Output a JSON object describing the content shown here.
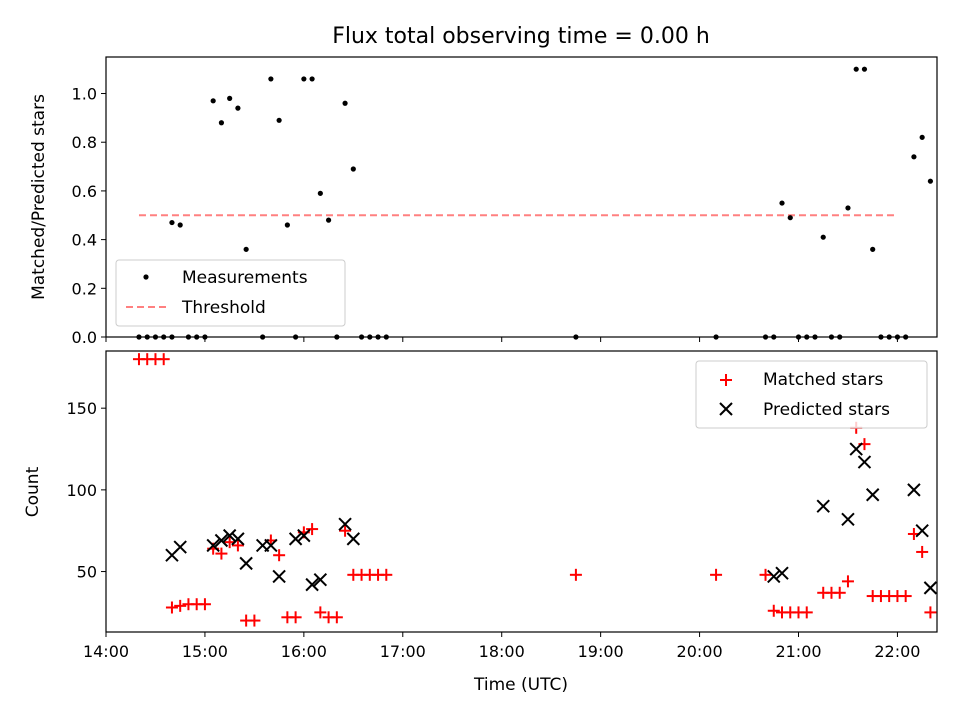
{
  "figure": {
    "title": "Flux total observing time = 0.00 h"
  },
  "chart_data": [
    {
      "type": "scatter",
      "ylabel": "Matched/Predicted stars",
      "xlabel": "",
      "xlim": [
        "14:00",
        "22:24"
      ],
      "ylim": [
        0,
        1.15
      ],
      "yticks": [
        0.0,
        0.2,
        0.4,
        0.6,
        0.8,
        1.0
      ],
      "ytick_labels": [
        "0.0",
        "0.2",
        "0.4",
        "0.6",
        "0.8",
        "1.0"
      ],
      "legend": {
        "placement": "lower-left",
        "entries": [
          "Measurements",
          "Threshold"
        ]
      },
      "threshold": {
        "name": "Threshold",
        "value": 0.5,
        "x": [
          "14:20",
          "22:00"
        ],
        "color": "#ff8080"
      },
      "series": [
        {
          "name": "Measurements",
          "color": "#000000",
          "points": [
            [
              "14:20",
              0
            ],
            [
              "14:25",
              0
            ],
            [
              "14:30",
              0
            ],
            [
              "14:35",
              0
            ],
            [
              "14:40",
              0
            ],
            [
              "14:50",
              0
            ],
            [
              "14:55",
              0
            ],
            [
              "15:00",
              0
            ],
            [
              "14:40",
              0.47
            ],
            [
              "14:45",
              0.46
            ],
            [
              "15:05",
              0.97
            ],
            [
              "15:10",
              0.88
            ],
            [
              "15:15",
              0.98
            ],
            [
              "15:20",
              0.94
            ],
            [
              "15:25",
              0.36
            ],
            [
              "15:35",
              0
            ],
            [
              "15:40",
              1.06
            ],
            [
              "15:45",
              0.89
            ],
            [
              "15:50",
              0.46
            ],
            [
              "15:55",
              0
            ],
            [
              "16:00",
              1.06
            ],
            [
              "16:05",
              1.06
            ],
            [
              "16:10",
              0.59
            ],
            [
              "16:15",
              0.48
            ],
            [
              "16:20",
              0
            ],
            [
              "16:25",
              0.96
            ],
            [
              "16:30",
              0.69
            ],
            [
              "16:35",
              0
            ],
            [
              "16:40",
              0
            ],
            [
              "16:45",
              0
            ],
            [
              "16:50",
              0
            ],
            [
              "18:45",
              0
            ],
            [
              "20:10",
              0
            ],
            [
              "20:40",
              0
            ],
            [
              "20:45",
              0
            ],
            [
              "20:50",
              0.55
            ],
            [
              "20:55",
              0.49
            ],
            [
              "21:00",
              0
            ],
            [
              "21:05",
              0
            ],
            [
              "21:10",
              0
            ],
            [
              "21:15",
              0.41
            ],
            [
              "21:20",
              0
            ],
            [
              "21:25",
              0
            ],
            [
              "21:30",
              0.53
            ],
            [
              "21:35",
              1.1
            ],
            [
              "21:40",
              1.1
            ],
            [
              "21:45",
              0.36
            ],
            [
              "21:50",
              0
            ],
            [
              "21:55",
              0
            ],
            [
              "22:00",
              0
            ],
            [
              "22:05",
              0
            ],
            [
              "22:10",
              0.74
            ],
            [
              "22:15",
              0.82
            ],
            [
              "22:20",
              0.64
            ]
          ]
        }
      ]
    },
    {
      "type": "scatter",
      "ylabel": "Count",
      "xlabel": "Time (UTC)",
      "xlim": [
        "14:00",
        "22:24"
      ],
      "ylim": [
        13,
        185
      ],
      "xticks": [
        "14:00",
        "15:00",
        "16:00",
        "17:00",
        "18:00",
        "19:00",
        "20:00",
        "21:00",
        "22:00"
      ],
      "yticks": [
        50,
        100,
        150
      ],
      "ytick_labels": [
        "50",
        "100",
        "150"
      ],
      "legend": {
        "placement": "top-right",
        "entries": [
          "Matched stars",
          "Predicted stars"
        ]
      },
      "series": [
        {
          "name": "Matched stars",
          "color": "#ff0000",
          "marker": "plus",
          "points": [
            [
              "14:20",
              180
            ],
            [
              "14:25",
              180
            ],
            [
              "14:30",
              180
            ],
            [
              "14:35",
              180
            ],
            [
              "14:40",
              28
            ],
            [
              "14:45",
              29
            ],
            [
              "14:50",
              30
            ],
            [
              "14:55",
              30
            ],
            [
              "15:00",
              30
            ],
            [
              "15:05",
              64
            ],
            [
              "15:10",
              61
            ],
            [
              "15:15",
              68
            ],
            [
              "15:20",
              66
            ],
            [
              "15:25",
              20
            ],
            [
              "15:30",
              20
            ],
            [
              "15:40",
              69
            ],
            [
              "15:45",
              60
            ],
            [
              "15:50",
              22
            ],
            [
              "15:55",
              22
            ],
            [
              "16:00",
              74
            ],
            [
              "16:05",
              76
            ],
            [
              "16:10",
              25
            ],
            [
              "16:15",
              22
            ],
            [
              "16:20",
              22
            ],
            [
              "16:25",
              75
            ],
            [
              "16:30",
              48
            ],
            [
              "16:35",
              48
            ],
            [
              "16:40",
              48
            ],
            [
              "16:45",
              48
            ],
            [
              "16:50",
              48
            ],
            [
              "18:45",
              48
            ],
            [
              "20:10",
              48
            ],
            [
              "20:40",
              48
            ],
            [
              "20:45",
              26
            ],
            [
              "20:50",
              25
            ],
            [
              "20:55",
              25
            ],
            [
              "21:00",
              25
            ],
            [
              "21:05",
              25
            ],
            [
              "21:15",
              37
            ],
            [
              "21:20",
              37
            ],
            [
              "21:25",
              37
            ],
            [
              "21:30",
              44
            ],
            [
              "21:35",
              138
            ],
            [
              "21:40",
              128
            ],
            [
              "21:45",
              35
            ],
            [
              "21:50",
              35
            ],
            [
              "21:55",
              35
            ],
            [
              "22:00",
              35
            ],
            [
              "22:05",
              35
            ],
            [
              "22:10",
              73
            ],
            [
              "22:15",
              62
            ],
            [
              "22:20",
              25
            ]
          ]
        },
        {
          "name": "Predicted stars",
          "color": "#000000",
          "marker": "x",
          "points": [
            [
              "14:40",
              60
            ],
            [
              "14:45",
              65
            ],
            [
              "15:05",
              66
            ],
            [
              "15:10",
              69
            ],
            [
              "15:15",
              72
            ],
            [
              "15:20",
              70
            ],
            [
              "15:25",
              55
            ],
            [
              "15:35",
              66
            ],
            [
              "15:40",
              66
            ],
            [
              "15:45",
              47
            ],
            [
              "15:55",
              70
            ],
            [
              "16:00",
              72
            ],
            [
              "16:05",
              42
            ],
            [
              "16:10",
              45
            ],
            [
              "16:25",
              79
            ],
            [
              "16:30",
              70
            ],
            [
              "20:45",
              47
            ],
            [
              "20:50",
              49
            ],
            [
              "21:15",
              90
            ],
            [
              "21:30",
              82
            ],
            [
              "21:35",
              125
            ],
            [
              "21:40",
              117
            ],
            [
              "21:45",
              97
            ],
            [
              "22:10",
              100
            ],
            [
              "22:15",
              75
            ],
            [
              "22:20",
              40
            ]
          ]
        }
      ]
    }
  ]
}
